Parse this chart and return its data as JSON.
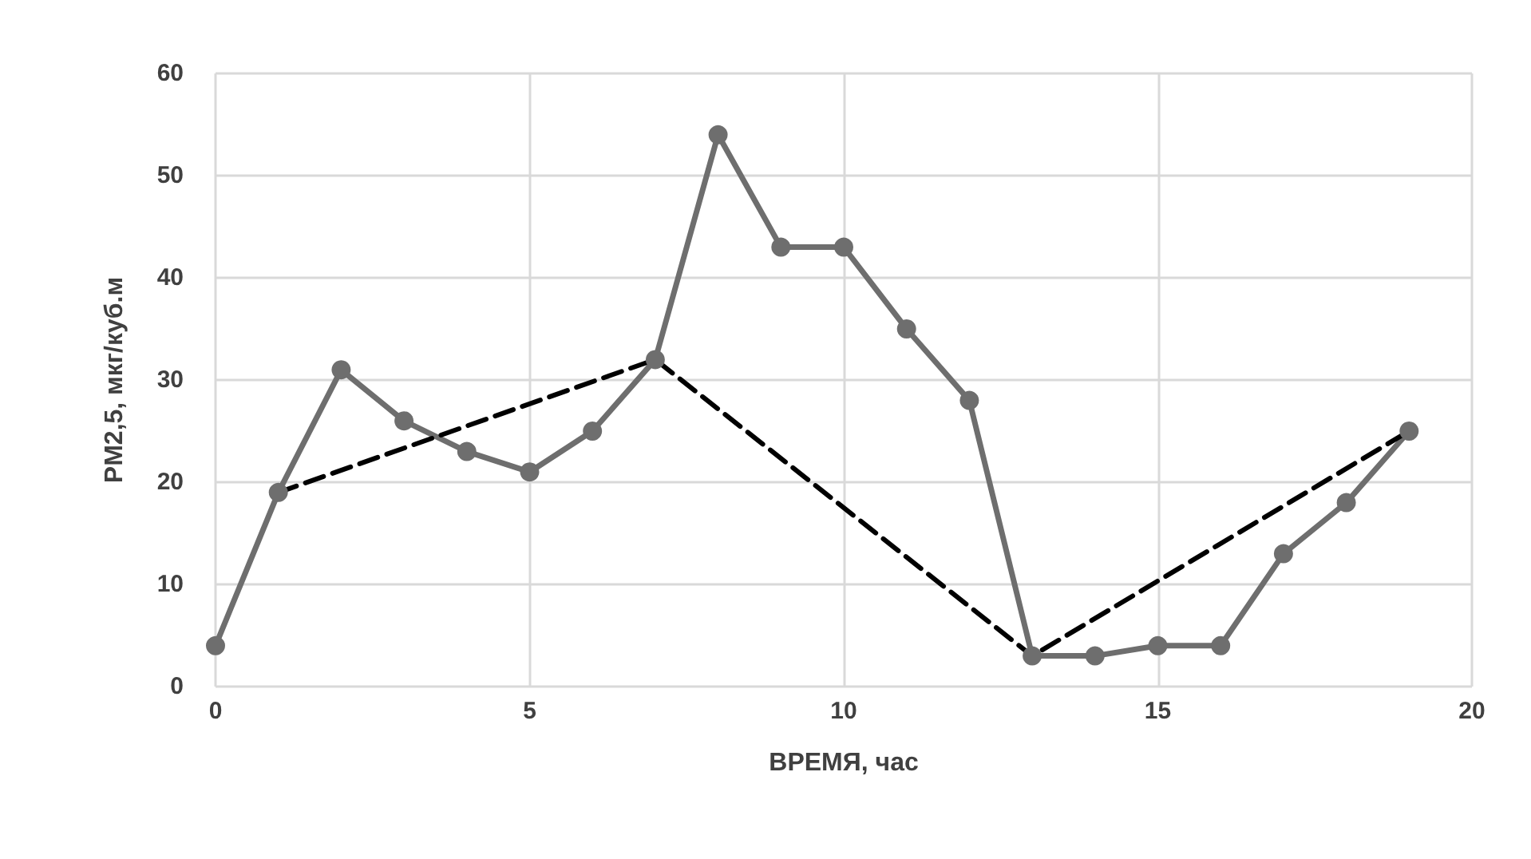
{
  "chart_data": {
    "type": "line",
    "xlabel": "ВРЕМЯ, час",
    "ylabel": "PM2,5, мкг/куб.м",
    "xlim": [
      0,
      20
    ],
    "xticks": [
      0,
      5,
      10,
      15,
      20
    ],
    "ylim": [
      0,
      60
    ],
    "yticks": [
      0,
      10,
      20,
      30,
      40,
      50,
      60
    ],
    "grid": true,
    "series": [
      {
        "color": "#6e6e6e",
        "marker": "circle",
        "line_style": "solid",
        "x": [
          0,
          1,
          2,
          3,
          4,
          5,
          6,
          7,
          8,
          9,
          10,
          11,
          12,
          13,
          14,
          15,
          16,
          17,
          18,
          19
        ],
        "values": [
          4,
          19,
          31,
          26,
          23,
          21,
          25,
          32,
          54,
          43,
          43,
          35,
          28,
          3,
          3,
          4,
          4,
          13,
          18,
          25
        ]
      },
      {
        "color": "#000000",
        "marker": "none",
        "line_style": "dashed",
        "x": [
          1,
          7,
          13,
          19
        ],
        "values": [
          19,
          32,
          3,
          25
        ]
      }
    ]
  }
}
